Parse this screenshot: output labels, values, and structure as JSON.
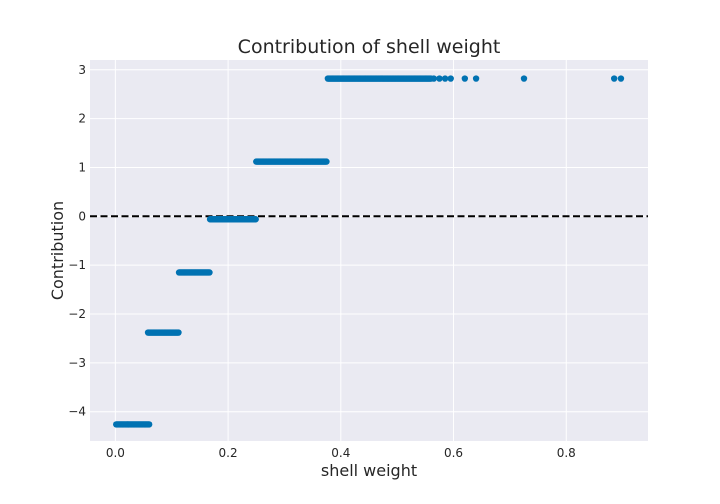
{
  "chart_data": {
    "type": "scatter",
    "title": "Contribution of shell weight",
    "xlabel": "shell weight",
    "ylabel": "Contribution",
    "xlim": [
      -0.045,
      0.945
    ],
    "ylim": [
      -4.6,
      3.2
    ],
    "xticks": [
      0.0,
      0.2,
      0.4,
      0.6,
      0.8
    ],
    "xtick_labels": [
      "0.0",
      "0.2",
      "0.4",
      "0.6",
      "0.8"
    ],
    "yticks": [
      -4,
      -3,
      -2,
      -1,
      0,
      1,
      2,
      3
    ],
    "ytick_labels": [
      "−4",
      "−3",
      "−2",
      "−1",
      "0",
      "1",
      "2",
      "3"
    ],
    "grid": true,
    "style": "seaborn-darkgrid",
    "reference_line": {
      "y": 0,
      "style": "dashed",
      "color": "#000000"
    },
    "point_color": "#0072b2",
    "background_color": "#eaeaf2",
    "steps": [
      {
        "x_start": 0.0015,
        "x_end": 0.06,
        "y": -4.26
      },
      {
        "x_start": 0.058,
        "x_end": 0.113,
        "y": -2.38
      },
      {
        "x_start": 0.113,
        "x_end": 0.168,
        "y": -1.15
      },
      {
        "x_start": 0.168,
        "x_end": 0.25,
        "y": -0.06
      },
      {
        "x_start": 0.25,
        "x_end": 0.375,
        "y": 1.12
      },
      {
        "x_start": 0.377,
        "x_end": 0.56,
        "y": 2.82
      }
    ],
    "sparse_points": [
      {
        "x": 0.565,
        "y": 2.82
      },
      {
        "x": 0.575,
        "y": 2.82
      },
      {
        "x": 0.585,
        "y": 2.82
      },
      {
        "x": 0.595,
        "y": 2.82
      },
      {
        "x": 0.62,
        "y": 2.82
      },
      {
        "x": 0.64,
        "y": 2.82
      },
      {
        "x": 0.725,
        "y": 2.82
      },
      {
        "x": 0.885,
        "y": 2.82
      },
      {
        "x": 0.897,
        "y": 2.82
      }
    ]
  }
}
